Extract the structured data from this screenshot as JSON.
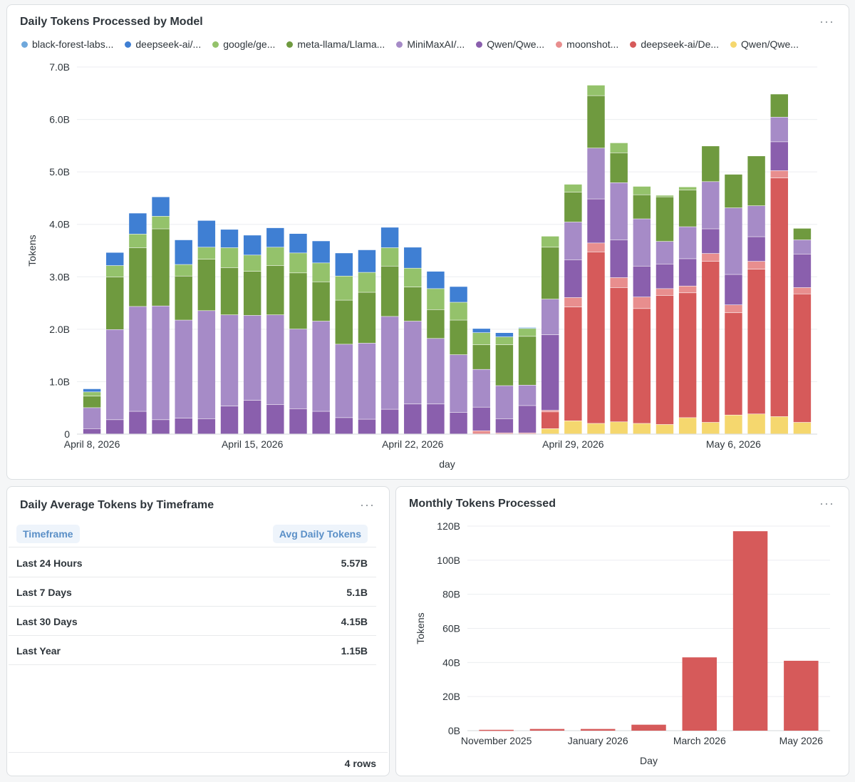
{
  "cards": {
    "daily": {
      "title": "Daily Tokens Processed by Model",
      "menu": "···"
    },
    "average": {
      "title": "Daily Average Tokens by Timeframe",
      "menu": "···"
    },
    "monthly": {
      "title": "Monthly Tokens Processed",
      "menu": "···"
    }
  },
  "chart_data": [
    {
      "type": "bar",
      "stacked": true,
      "title": "Daily Tokens Processed by Model",
      "xlabel": "day",
      "ylabel": "Tokens",
      "ylim": [
        0,
        7.0
      ],
      "y_unit": "B",
      "y_ticks": [
        "0",
        "1.0B",
        "2.0B",
        "3.0B",
        "4.0B",
        "5.0B",
        "6.0B",
        "7.0B"
      ],
      "x_ticks": [
        {
          "index": 0,
          "label": "April 8, 2026"
        },
        {
          "index": 7,
          "label": "April 15, 2026"
        },
        {
          "index": 14,
          "label": "April 22, 2026"
        },
        {
          "index": 21,
          "label": "April 29, 2026"
        },
        {
          "index": 28,
          "label": "May 6, 2026"
        }
      ],
      "grid": true,
      "legend": "top",
      "categories": [
        "2026-04-08",
        "2026-04-09",
        "2026-04-10",
        "2026-04-11",
        "2026-04-12",
        "2026-04-13",
        "2026-04-14",
        "2026-04-15",
        "2026-04-16",
        "2026-04-17",
        "2026-04-18",
        "2026-04-19",
        "2026-04-20",
        "2026-04-21",
        "2026-04-22",
        "2026-04-23",
        "2026-04-24",
        "2026-04-25",
        "2026-04-26",
        "2026-04-27",
        "2026-04-28",
        "2026-04-29",
        "2026-04-30",
        "2026-05-01",
        "2026-05-02",
        "2026-05-03",
        "2026-05-04",
        "2026-05-05",
        "2026-05-06",
        "2026-05-07",
        "2026-05-08",
        "2026-05-09"
      ],
      "series": [
        {
          "name": "Qwen/Qwe...",
          "color": "#f5d76e",
          "values": [
            0,
            0,
            0,
            0,
            0,
            0,
            0,
            0,
            0,
            0,
            0,
            0,
            0,
            0,
            0,
            0,
            0,
            0,
            0,
            0,
            0.1,
            0.25,
            0.2,
            0.23,
            0.2,
            0.18,
            0.31,
            0.22,
            0.36,
            0.38,
            0.33,
            0.22
          ]
        },
        {
          "name": "deepseek-ai/De...",
          "color": "#d65a5a",
          "values": [
            0,
            0,
            0,
            0,
            0,
            0,
            0,
            0,
            0,
            0,
            0,
            0,
            0,
            0,
            0,
            0,
            0,
            0,
            0,
            0,
            0.32,
            2.17,
            3.27,
            2.56,
            2.19,
            2.46,
            2.38,
            3.07,
            1.95,
            2.76,
            4.55,
            2.45
          ]
        },
        {
          "name": "moonshot...",
          "color": "#e88e8e",
          "values": [
            0,
            0,
            0,
            0,
            0,
            0,
            0,
            0,
            0,
            0,
            0,
            0,
            0,
            0,
            0,
            0,
            0,
            0.06,
            0.02,
            0.02,
            0.03,
            0.18,
            0.17,
            0.19,
            0.22,
            0.13,
            0.13,
            0.15,
            0.15,
            0.15,
            0.14,
            0.12
          ]
        },
        {
          "name": "Qwen/Qwe...",
          "color": "#8a5fad",
          "values": [
            0.1,
            0.27,
            0.43,
            0.27,
            0.3,
            0.29,
            0.53,
            0.64,
            0.56,
            0.48,
            0.43,
            0.31,
            0.28,
            0.47,
            0.57,
            0.57,
            0.41,
            0.45,
            0.27,
            0.52,
            1.44,
            0.72,
            0.84,
            0.72,
            0.59,
            0.47,
            0.52,
            0.47,
            0.58,
            0.47,
            0.55,
            0.64
          ]
        },
        {
          "name": "MiniMaxAI/...",
          "color": "#a68bc7",
          "values": [
            0.4,
            1.72,
            2.0,
            2.17,
            1.87,
            2.06,
            1.74,
            1.62,
            1.71,
            1.52,
            1.72,
            1.4,
            1.45,
            1.77,
            1.58,
            1.25,
            1.1,
            0.72,
            0.63,
            0.39,
            0.68,
            0.72,
            0.97,
            1.09,
            0.9,
            0.43,
            0.61,
            0.9,
            1.27,
            0.59,
            0.47,
            0.27
          ]
        },
        {
          "name": "meta-llama/Llama...",
          "color": "#6f9a3f",
          "values": [
            0.22,
            1.0,
            1.12,
            1.47,
            0.84,
            0.98,
            0.9,
            0.84,
            0.94,
            1.07,
            0.75,
            0.84,
            0.97,
            0.96,
            0.65,
            0.55,
            0.66,
            0.47,
            0.78,
            0.93,
            0.99,
            0.57,
            1.0,
            0.57,
            0.46,
            0.85,
            0.7,
            0.68,
            0.64,
            0.95,
            0.44,
            0.22
          ]
        },
        {
          "name": "google/ge...",
          "color": "#94c26b",
          "values": [
            0.08,
            0.22,
            0.26,
            0.24,
            0.22,
            0.23,
            0.38,
            0.31,
            0.35,
            0.38,
            0.36,
            0.46,
            0.38,
            0.35,
            0.36,
            0.4,
            0.34,
            0.23,
            0.15,
            0.15,
            0.21,
            0.15,
            0.2,
            0.19,
            0.16,
            0.03,
            0.06,
            0,
            0,
            0,
            0,
            0
          ]
        },
        {
          "name": "deepseek-ai/...",
          "color": "#3f7fd3",
          "values": [
            0.06,
            0.25,
            0.4,
            0.37,
            0.47,
            0.51,
            0.35,
            0.38,
            0.37,
            0.37,
            0.42,
            0.44,
            0.43,
            0.39,
            0.4,
            0.33,
            0.3,
            0.08,
            0.08,
            0,
            0,
            0,
            0,
            0,
            0,
            0,
            0,
            0,
            0,
            0,
            0,
            0
          ]
        },
        {
          "name": "black-forest-labs...",
          "color": "#6fa8dc",
          "values": [
            0,
            0,
            0,
            0,
            0,
            0,
            0,
            0,
            0,
            0,
            0,
            0,
            0,
            0,
            0,
            0,
            0,
            0,
            0,
            0.02,
            0,
            0,
            0,
            0,
            0,
            0,
            0,
            0,
            0,
            0,
            0,
            0
          ]
        }
      ],
      "legend_order": [
        8,
        7,
        6,
        5,
        4,
        3,
        2,
        1,
        0
      ]
    },
    {
      "type": "bar",
      "title": "Monthly Tokens Processed",
      "xlabel": "Day",
      "ylabel": "Tokens",
      "ylim": [
        0,
        120
      ],
      "y_unit": "B",
      "y_ticks": [
        "0B",
        "20B",
        "40B",
        "60B",
        "80B",
        "100B",
        "120B"
      ],
      "categories": [
        "November 2025",
        "December 2025",
        "January 2026",
        "February 2026",
        "March 2026",
        "April 2026",
        "May 2026"
      ],
      "x_tick_labels": [
        "November 2025",
        "",
        "January 2026",
        "",
        "March 2026",
        "",
        "May 2026"
      ],
      "values": [
        0.5,
        1.0,
        1.0,
        3.5,
        43,
        117,
        41
      ],
      "color": "#d65a5a",
      "grid": true
    }
  ],
  "table": {
    "headers": {
      "timeframe": "Timeframe",
      "avg": "Avg Daily Tokens"
    },
    "rows": [
      {
        "timeframe": "Last 24 Hours",
        "avg": "5.57B"
      },
      {
        "timeframe": "Last 7 Days",
        "avg": "5.1B"
      },
      {
        "timeframe": "Last 30 Days",
        "avg": "4.15B"
      },
      {
        "timeframe": "Last Year",
        "avg": "1.15B"
      }
    ],
    "row_count": "4 rows"
  }
}
